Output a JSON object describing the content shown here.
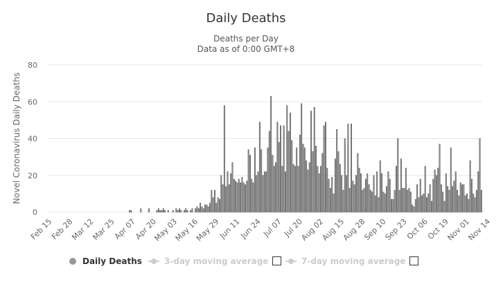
{
  "chart_data": {
    "type": "bar",
    "title": "Daily Deaths",
    "subtitle": "Deaths per Day",
    "subtitle2": "Data as of 0:00 GMT+8",
    "ylabel": "Novel Coronavirus Daily Deaths",
    "ylim": [
      0,
      80
    ],
    "yticks": [
      0,
      20,
      40,
      60,
      80
    ],
    "start_date": "Feb 15",
    "xtick_labels": [
      "Feb 15",
      "Feb 28",
      "Mar 12",
      "Mar 25",
      "Apr 07",
      "Apr 20",
      "May 03",
      "May 16",
      "May 29",
      "Jun 11",
      "Jun 24",
      "Jul 07",
      "Jul 20",
      "Aug 02",
      "Aug 15",
      "Aug 28",
      "Sep 10",
      "Sep 23",
      "Oct 06",
      "Oct 19",
      "Nov 01",
      "Nov 14"
    ],
    "values": [
      0,
      0,
      0,
      0,
      0,
      0,
      0,
      0,
      0,
      0,
      0,
      0,
      0,
      0,
      0,
      0,
      0,
      0,
      0,
      0,
      0,
      0,
      0,
      0,
      0,
      0,
      0,
      0,
      0,
      0,
      0,
      0,
      0,
      0,
      0,
      0,
      0,
      0,
      0,
      0,
      0,
      0,
      0,
      0,
      0,
      0,
      0,
      0,
      0,
      0,
      1,
      1,
      0,
      0,
      0,
      0,
      0,
      2,
      0,
      0,
      0,
      0,
      2,
      0,
      0,
      0,
      0,
      1,
      2,
      1,
      1,
      2,
      1,
      0,
      1,
      0,
      0,
      1,
      0,
      2,
      1,
      2,
      1,
      0,
      1,
      2,
      1,
      0,
      1,
      2,
      0,
      2,
      3,
      2,
      5,
      3,
      2,
      4,
      4,
      3,
      5,
      12,
      8,
      12,
      5,
      8,
      7,
      20,
      15,
      58,
      14,
      22,
      15,
      21,
      27,
      18,
      17,
      16,
      18,
      16,
      19,
      16,
      15,
      17,
      34,
      31,
      18,
      16,
      35,
      20,
      22,
      49,
      34,
      20,
      22,
      22,
      35,
      44,
      63,
      31,
      25,
      27,
      49,
      38,
      47,
      25,
      47,
      22,
      58,
      44,
      54,
      39,
      26,
      25,
      35,
      25,
      42,
      59,
      37,
      35,
      28,
      23,
      27,
      55,
      33,
      57,
      36,
      25,
      21,
      25,
      32,
      47,
      49,
      24,
      18,
      13,
      19,
      10,
      29,
      45,
      33,
      26,
      20,
      12,
      40,
      20,
      48,
      13,
      48,
      17,
      15,
      20,
      32,
      24,
      21,
      12,
      13,
      18,
      21,
      15,
      12,
      11,
      20,
      9,
      22,
      8,
      28,
      21,
      11,
      10,
      14,
      22,
      18,
      7,
      7,
      12,
      25,
      40,
      12,
      29,
      13,
      13,
      24,
      12,
      13,
      11,
      4,
      3,
      7,
      15,
      8,
      18,
      9,
      10,
      25,
      8,
      10,
      15,
      6,
      18,
      23,
      20,
      24,
      37,
      15,
      11,
      6,
      21,
      14,
      12,
      35,
      14,
      17,
      22,
      12,
      9,
      16,
      15,
      15,
      9,
      10,
      7,
      28,
      18,
      10,
      8,
      12,
      22,
      40,
      12
    ]
  },
  "legend": {
    "daily_deaths": "Daily Deaths",
    "avg3": "3-day moving average",
    "avg7": "7-day moving average"
  },
  "colors": {
    "bar_fill": "#8f8f8f",
    "bar_stroke": "#555555",
    "legend_inactive": "#cccccc"
  }
}
